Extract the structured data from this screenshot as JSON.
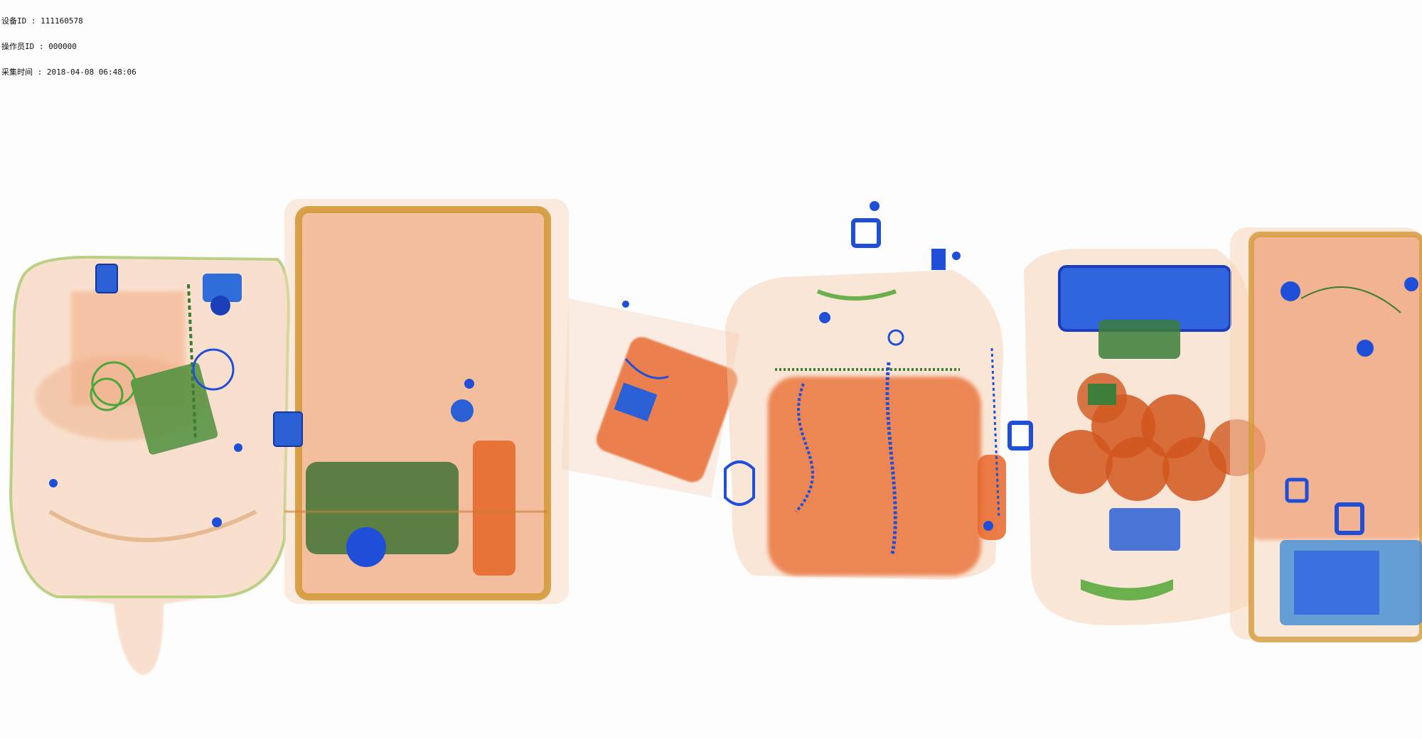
{
  "meta": {
    "device_id": "设备ID : 111160578",
    "operator_id": "操作员ID : 000000",
    "capture_time": "采集时间 : 2018-04-08 06:48:06"
  },
  "colors": {
    "background": "#fdfdfd",
    "organic": "#e8662a",
    "mixed": "#5aa04a",
    "metal": "#1f4fd8"
  }
}
